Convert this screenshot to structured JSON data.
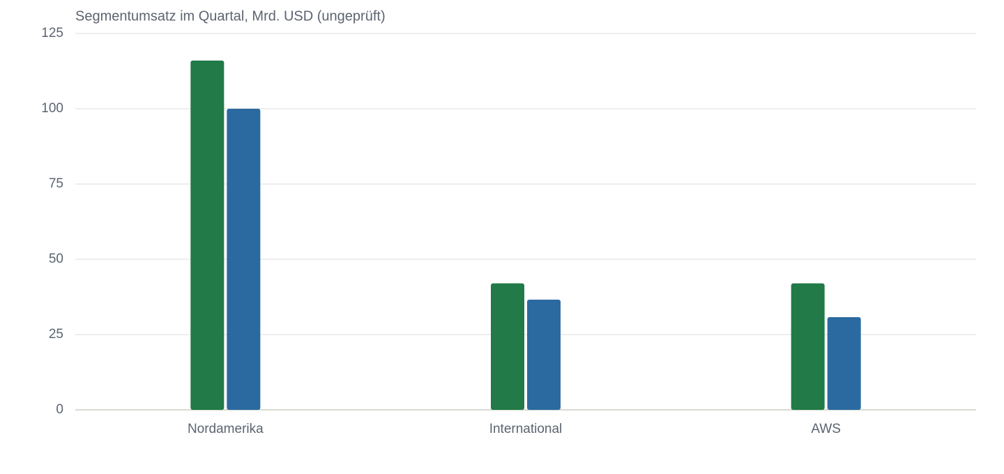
{
  "chart_data": {
    "type": "bar",
    "title": "Segmentumsatz im Quartal, Mrd. USD (ungeprüft)",
    "categories": [
      "Nordamerika",
      "International",
      "AWS"
    ],
    "series": [
      {
        "color": "#217a47",
        "values": [
          116,
          42,
          42
        ]
      },
      {
        "color": "#2b6aa0",
        "values": [
          100,
          36.6,
          30.8
        ]
      }
    ],
    "ylim": [
      0,
      125
    ],
    "yticks": [
      0,
      25,
      50,
      75,
      100,
      125
    ],
    "grid": true
  }
}
